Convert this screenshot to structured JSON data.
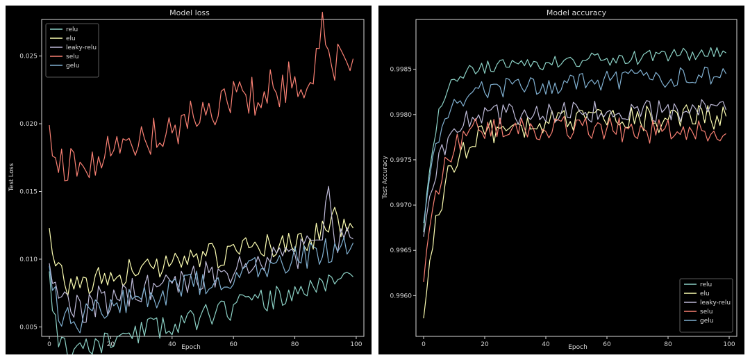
{
  "colors": {
    "relu": "#8dd3c7",
    "elu": "#feffb3",
    "leaky-relu": "#bfbbd9",
    "selu": "#fa8174",
    "gelu": "#81b1d2",
    "axes": "#d8d8d8",
    "background": "#000000"
  },
  "chart_data": [
    {
      "type": "line",
      "title": "Model loss",
      "xlabel": "Epoch",
      "ylabel": "Test Loss",
      "xlim": [
        -2.5,
        102.5
      ],
      "ylim": [
        0.0043,
        0.0277
      ],
      "xticks": [
        0,
        20,
        40,
        60,
        80,
        100
      ],
      "xtick_labels": [
        "0",
        "20",
        "40",
        "60",
        "80",
        "100"
      ],
      "yticks": [
        0.005,
        0.01,
        0.015,
        0.02,
        0.025
      ],
      "ytick_labels": [
        "0.005",
        "0.010",
        "0.015",
        "0.020",
        "0.025"
      ],
      "legend": "top-left",
      "grid": false,
      "series": [
        {
          "name": "relu",
          "start": 0.0091,
          "end": 0.0087,
          "noise": 0.0009,
          "dip": 0.0028,
          "dip_depth": 0.0012,
          "seed": 11
        },
        {
          "name": "elu",
          "start": 0.0123,
          "end": 0.0123,
          "noise": 0.001,
          "dip": 0.0078,
          "dip_depth": 0.0006,
          "seed": 23,
          "bump": [
            92,
            0.0018
          ]
        },
        {
          "name": "leaky-relu",
          "start": 0.0097,
          "end": 0.0115,
          "noise": 0.0012,
          "dip": 0.006,
          "dip_depth": 0.0007,
          "seed": 37,
          "bump": [
            91,
            0.0045
          ]
        },
        {
          "name": "selu",
          "start": 0.0199,
          "end": 0.0248,
          "noise": 0.0016,
          "dip": 0.0165,
          "dip_depth": 0.001,
          "seed": 41,
          "bump": [
            89,
            0.0028
          ]
        },
        {
          "name": "gelu",
          "start": 0.0095,
          "end": 0.0112,
          "noise": 0.001,
          "dip": 0.0053,
          "dip_depth": 0.0009,
          "seed": 53
        }
      ]
    },
    {
      "type": "line",
      "title": "Model accuracy",
      "xlabel": "Epoch",
      "ylabel": "Test Accuracy",
      "xlim": [
        -2.5,
        102.5
      ],
      "ylim": [
        0.99555,
        0.99905
      ],
      "xticks": [
        0,
        20,
        40,
        60,
        80,
        100
      ],
      "xtick_labels": [
        "0",
        "20",
        "40",
        "60",
        "80",
        "100"
      ],
      "yticks": [
        0.996,
        0.9965,
        0.997,
        0.9975,
        0.998,
        0.9985
      ],
      "ytick_labels": [
        "0.9960",
        "0.9965",
        "0.9970",
        "0.9975",
        "0.9980",
        "0.9985"
      ],
      "legend": "bottom-right",
      "grid": false,
      "series": [
        {
          "name": "relu",
          "start": 0.9967,
          "plateau": 0.9985,
          "end": 0.99868,
          "noise": 8e-05,
          "rise": 4,
          "seed": 61
        },
        {
          "name": "elu",
          "start": 0.99575,
          "plateau": 0.99785,
          "end": 0.99798,
          "noise": 0.00015,
          "rise": 6,
          "seed": 71
        },
        {
          "name": "leaky-relu",
          "start": 0.99665,
          "plateau": 0.998,
          "end": 0.99805,
          "noise": 0.00012,
          "rise": 5,
          "seed": 83
        },
        {
          "name": "selu",
          "start": 0.99615,
          "plateau": 0.9979,
          "end": 0.99779,
          "noise": 0.00014,
          "rise": 5,
          "seed": 89
        },
        {
          "name": "gelu",
          "start": 0.9968,
          "plateau": 0.99825,
          "end": 0.99845,
          "noise": 0.00011,
          "rise": 5,
          "seed": 97
        }
      ]
    }
  ]
}
